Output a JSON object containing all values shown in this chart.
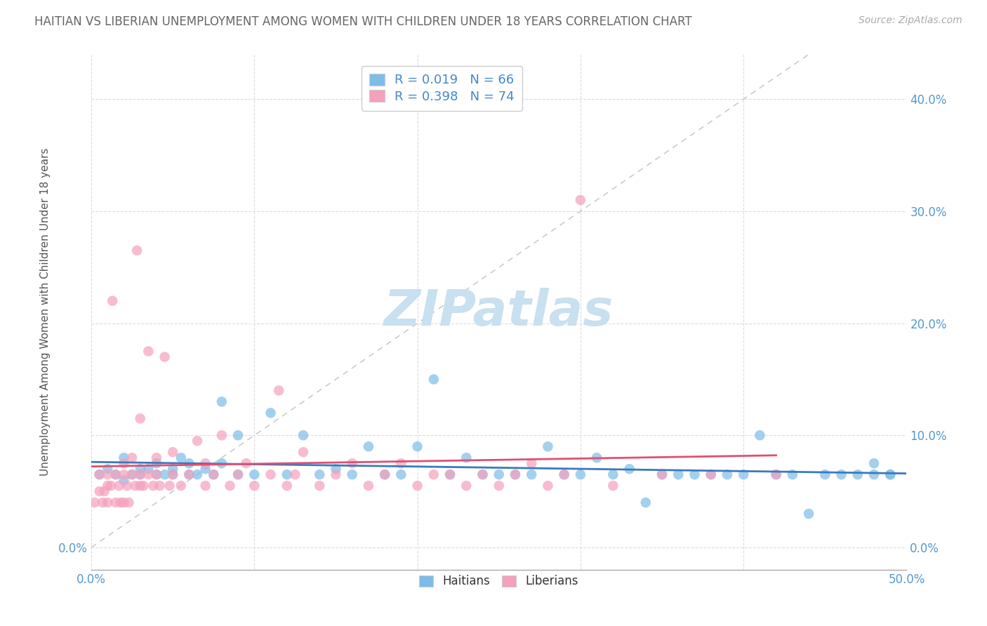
{
  "title": "HAITIAN VS LIBERIAN UNEMPLOYMENT AMONG WOMEN WITH CHILDREN UNDER 18 YEARS CORRELATION CHART",
  "source": "Source: ZipAtlas.com",
  "ylabel": "Unemployment Among Women with Children Under 18 years",
  "yticks": [
    "0.0%",
    "10.0%",
    "20.0%",
    "30.0%",
    "40.0%"
  ],
  "ytick_vals": [
    0.0,
    0.1,
    0.2,
    0.3,
    0.4
  ],
  "xlim": [
    0.0,
    0.5
  ],
  "ylim": [
    -0.02,
    0.44
  ],
  "legend_r1": "R = 0.019",
  "legend_n1": "N = 66",
  "legend_r2": "R = 0.398",
  "legend_n2": "N = 74",
  "haitian_color": "#7cbde8",
  "liberian_color": "#f5a0bc",
  "haitian_line_color": "#3a7abf",
  "liberian_line_color": "#e05070",
  "diagonal_color": "#cccccc",
  "background_color": "#ffffff",
  "title_color": "#666666",
  "watermark_color": "#c8e0f0",
  "haitian_x": [
    0.005,
    0.01,
    0.015,
    0.02,
    0.02,
    0.025,
    0.03,
    0.03,
    0.035,
    0.04,
    0.04,
    0.045,
    0.05,
    0.05,
    0.055,
    0.06,
    0.06,
    0.065,
    0.07,
    0.075,
    0.08,
    0.08,
    0.09,
    0.09,
    0.1,
    0.11,
    0.12,
    0.13,
    0.14,
    0.15,
    0.16,
    0.17,
    0.18,
    0.19,
    0.2,
    0.21,
    0.22,
    0.23,
    0.24,
    0.25,
    0.26,
    0.27,
    0.28,
    0.29,
    0.3,
    0.31,
    0.32,
    0.33,
    0.34,
    0.35,
    0.36,
    0.37,
    0.38,
    0.39,
    0.4,
    0.41,
    0.42,
    0.43,
    0.44,
    0.45,
    0.46,
    0.47,
    0.48,
    0.48,
    0.49,
    0.49
  ],
  "haitian_y": [
    0.065,
    0.07,
    0.065,
    0.06,
    0.08,
    0.065,
    0.07,
    0.065,
    0.07,
    0.065,
    0.075,
    0.065,
    0.07,
    0.065,
    0.08,
    0.065,
    0.075,
    0.065,
    0.07,
    0.065,
    0.075,
    0.13,
    0.065,
    0.1,
    0.065,
    0.12,
    0.065,
    0.1,
    0.065,
    0.07,
    0.065,
    0.09,
    0.065,
    0.065,
    0.09,
    0.15,
    0.065,
    0.08,
    0.065,
    0.065,
    0.065,
    0.065,
    0.09,
    0.065,
    0.065,
    0.08,
    0.065,
    0.07,
    0.04,
    0.065,
    0.065,
    0.065,
    0.065,
    0.065,
    0.065,
    0.1,
    0.065,
    0.065,
    0.03,
    0.065,
    0.065,
    0.065,
    0.065,
    0.075,
    0.065,
    0.065
  ],
  "liberian_x": [
    0.002,
    0.005,
    0.005,
    0.007,
    0.008,
    0.01,
    0.01,
    0.01,
    0.012,
    0.013,
    0.015,
    0.015,
    0.017,
    0.018,
    0.02,
    0.02,
    0.02,
    0.022,
    0.023,
    0.025,
    0.025,
    0.027,
    0.028,
    0.03,
    0.03,
    0.03,
    0.032,
    0.035,
    0.035,
    0.038,
    0.04,
    0.04,
    0.042,
    0.045,
    0.048,
    0.05,
    0.05,
    0.055,
    0.06,
    0.065,
    0.07,
    0.07,
    0.075,
    0.08,
    0.085,
    0.09,
    0.095,
    0.1,
    0.11,
    0.115,
    0.12,
    0.125,
    0.13,
    0.14,
    0.15,
    0.16,
    0.17,
    0.18,
    0.19,
    0.2,
    0.21,
    0.22,
    0.23,
    0.24,
    0.25,
    0.26,
    0.27,
    0.28,
    0.29,
    0.3,
    0.32,
    0.35,
    0.38,
    0.42
  ],
  "liberian_y": [
    0.04,
    0.05,
    0.065,
    0.04,
    0.05,
    0.04,
    0.055,
    0.065,
    0.055,
    0.22,
    0.04,
    0.065,
    0.055,
    0.04,
    0.04,
    0.065,
    0.075,
    0.055,
    0.04,
    0.065,
    0.08,
    0.055,
    0.265,
    0.055,
    0.065,
    0.115,
    0.055,
    0.065,
    0.175,
    0.055,
    0.065,
    0.08,
    0.055,
    0.17,
    0.055,
    0.065,
    0.085,
    0.055,
    0.065,
    0.095,
    0.055,
    0.075,
    0.065,
    0.1,
    0.055,
    0.065,
    0.075,
    0.055,
    0.065,
    0.14,
    0.055,
    0.065,
    0.085,
    0.055,
    0.065,
    0.075,
    0.055,
    0.065,
    0.075,
    0.055,
    0.065,
    0.065,
    0.055,
    0.065,
    0.055,
    0.065,
    0.075,
    0.055,
    0.065,
    0.31,
    0.055,
    0.065,
    0.065,
    0.065
  ]
}
